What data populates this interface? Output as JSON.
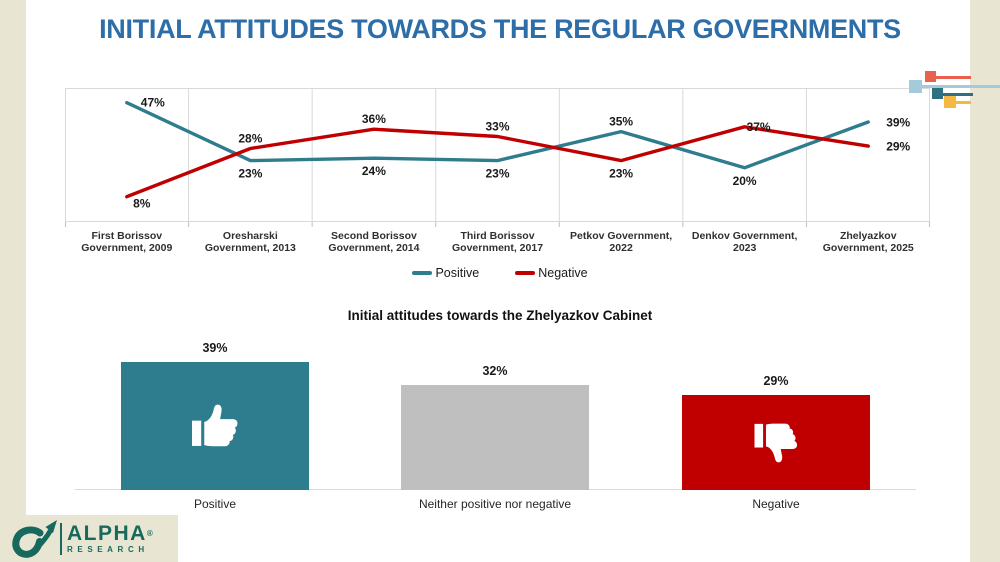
{
  "title": "INITIAL ATTITUDES TOWARDS THE REGULAR GOVERNMENTS",
  "colors": {
    "title": "#2D6DA8",
    "positive": "#2E7D8E",
    "negative": "#C00000",
    "neutral": "#BFBFBF",
    "grid": "#D9D9D9",
    "accent_bar": "#E8E6D3",
    "data_label": "#1a1a1a",
    "logo": "#17695D",
    "deco_red": "#E9604C",
    "deco_lightblue": "#A3CBD9",
    "deco_teal": "#2E6F80",
    "deco_yellow": "#F4B942"
  },
  "chart_data": [
    {
      "type": "line",
      "title": "",
      "categories": [
        "First Borissov Government, 2009",
        "Oresharski Government, 2013",
        "Second Borissov Government, 2014",
        "Third Borissov Government, 2017",
        "Petkov Government, 2022",
        "Denkov Government, 2023",
        "Zhelyazkov Government, 2025"
      ],
      "category_label_lines": [
        [
          "First Borissov",
          "Government, 2009"
        ],
        [
          "Oresharski",
          "Government, 2013"
        ],
        [
          "Second Borissov",
          "Government, 2014"
        ],
        [
          "Third Borissov",
          "Government, 2017"
        ],
        [
          "Petkov Government, 2022"
        ],
        [
          "Denkov Government, 2023"
        ],
        [
          "Zhelyazkov",
          "Government, 2025"
        ]
      ],
      "series": [
        {
          "name": "Positive",
          "color_key": "positive",
          "values": [
            47,
            23,
            24,
            23,
            35,
            20,
            39
          ]
        },
        {
          "name": "Negative",
          "color_key": "negative",
          "values": [
            8,
            28,
            36,
            33,
            23,
            37,
            29
          ]
        }
      ],
      "value_suffix": "%",
      "ylim": [
        0,
        53
      ],
      "grid": "vertical-category-separators",
      "legend_position": "bottom"
    },
    {
      "type": "bar",
      "title": "Initial attitudes towards the Zhelyazkov Cabinet",
      "categories": [
        "Positive",
        "Neither positive nor negative",
        "Negative"
      ],
      "values": [
        39,
        32,
        29
      ],
      "value_suffix": "%",
      "bar_color_keys": [
        "positive",
        "neutral",
        "negative"
      ],
      "bar_icons": [
        "thumb-up-icon",
        null,
        "thumb-down-icon"
      ],
      "ylim": [
        0,
        45
      ],
      "grid": "off",
      "legend_position": "none"
    }
  ],
  "logo": {
    "brand": "ALPHA",
    "registered": "®",
    "subtitle": "RESEARCH"
  }
}
